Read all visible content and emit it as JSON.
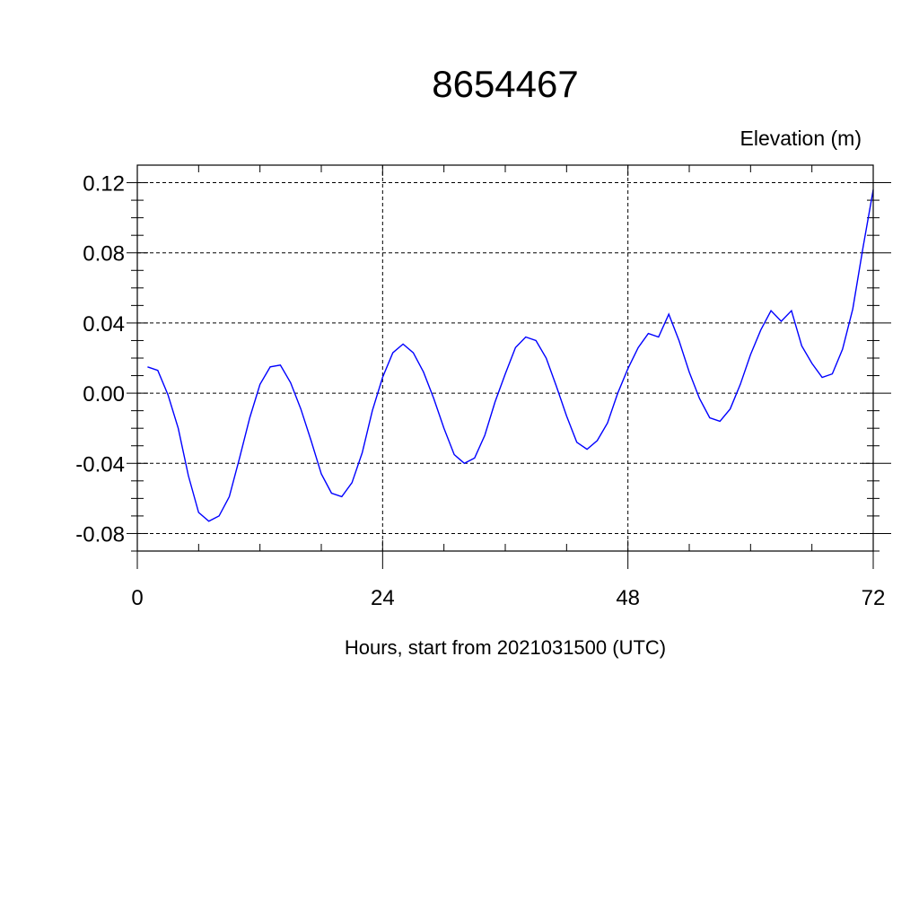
{
  "chart_data": {
    "type": "line",
    "title": "8654467",
    "ylabel": "Elevation (m)",
    "xlabel": "Hours, start from 2021031500 (UTC)",
    "xlim": [
      0,
      72
    ],
    "ylim": [
      -0.09,
      0.13
    ],
    "x_ticks": [
      0,
      24,
      48,
      72
    ],
    "x_tick_labels": [
      "0",
      "24",
      "48",
      "72"
    ],
    "y_ticks": [
      -0.08,
      -0.04,
      0.0,
      0.04,
      0.08,
      0.12
    ],
    "y_tick_labels": [
      "-0.08",
      "-0.04",
      "0.00",
      "0.04",
      "0.08",
      "0.12"
    ],
    "grid": true,
    "line_color": "#0000ff",
    "series": [
      {
        "x": [
          1,
          2,
          3,
          4,
          5,
          6,
          7,
          8,
          9,
          10,
          11,
          12,
          13,
          14,
          15,
          16,
          17,
          18,
          19,
          20,
          21,
          22,
          23,
          24,
          25,
          26,
          27,
          28,
          29,
          30,
          31,
          32,
          33,
          34,
          35,
          36,
          37,
          38,
          39,
          40,
          41,
          42,
          43,
          44,
          45,
          46,
          47,
          48,
          49,
          50,
          51,
          52,
          53,
          54,
          55,
          56,
          57,
          58,
          59,
          60,
          61,
          62,
          63,
          64,
          65,
          66,
          67,
          68,
          69,
          70,
          71,
          72
        ],
        "values": [
          0.015,
          0.013,
          -0.001,
          -0.02,
          -0.047,
          -0.068,
          -0.073,
          -0.07,
          -0.059,
          -0.037,
          -0.014,
          0.005,
          0.015,
          0.016,
          0.006,
          -0.009,
          -0.027,
          -0.046,
          -0.057,
          -0.059,
          -0.051,
          -0.034,
          -0.01,
          0.009,
          0.023,
          0.028,
          0.023,
          0.012,
          -0.003,
          -0.02,
          -0.035,
          -0.04,
          -0.037,
          -0.024,
          -0.005,
          0.011,
          0.026,
          0.032,
          0.03,
          0.02,
          0.004,
          -0.013,
          -0.028,
          -0.032,
          -0.027,
          -0.017,
          0.0,
          0.014,
          0.026,
          0.034,
          0.032,
          0.045,
          0.03,
          0.012,
          -0.003,
          -0.014,
          -0.016,
          -0.009,
          0.005,
          0.022,
          0.036,
          0.047,
          0.041,
          0.047,
          0.027,
          0.017,
          0.009,
          0.011,
          0.025,
          0.048,
          0.083,
          0.116
        ]
      }
    ]
  }
}
